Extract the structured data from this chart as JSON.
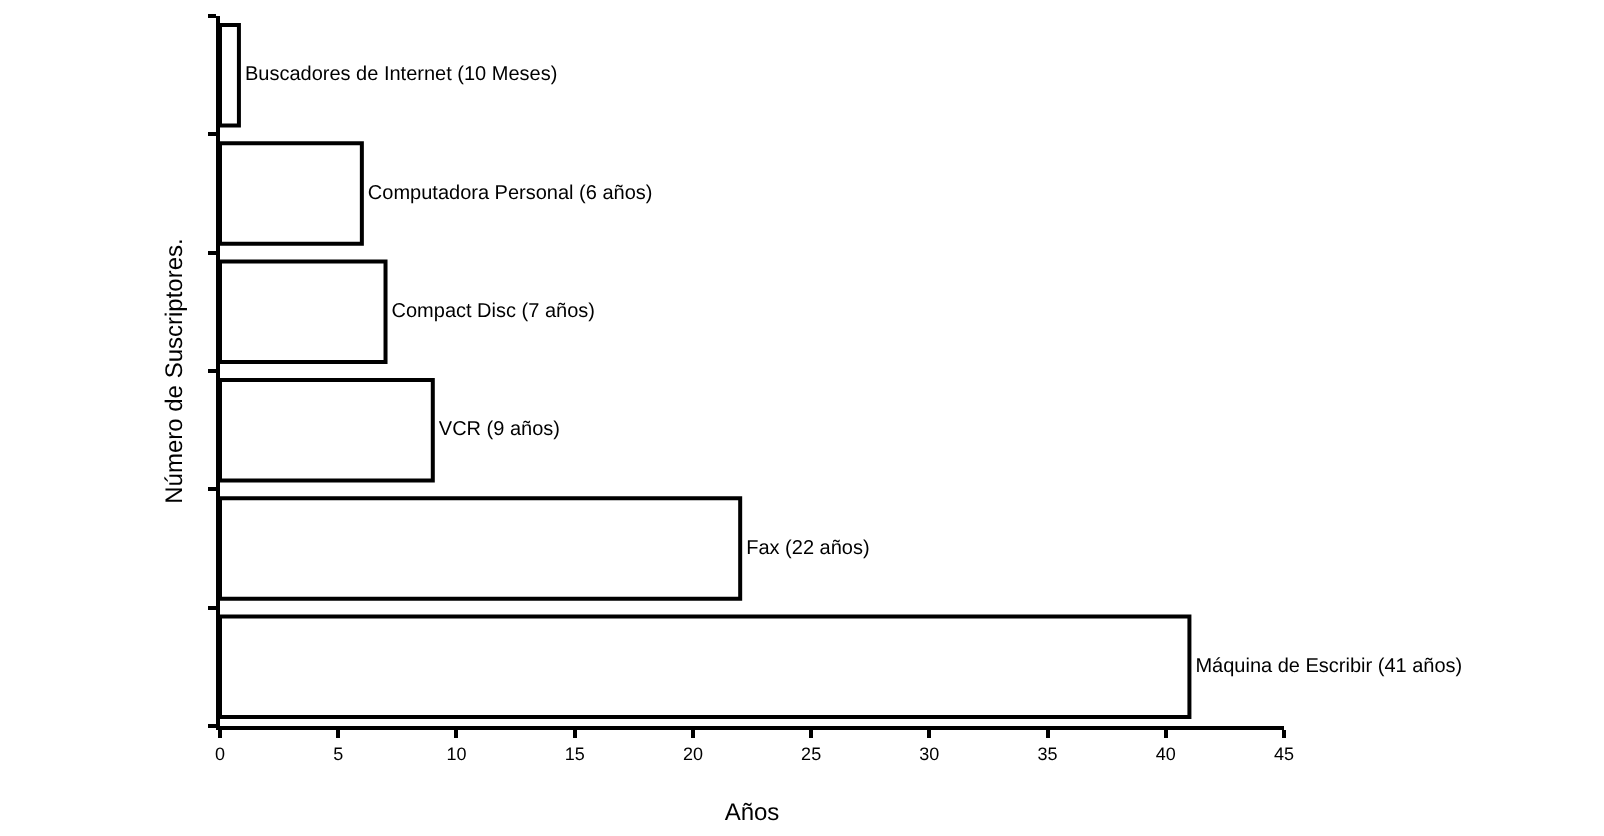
{
  "chart_data": {
    "type": "bar",
    "orientation": "horizontal",
    "xlabel": "Años",
    "ylabel": "Número de Suscriptores.",
    "categories": [
      "Buscadores de Internet (10 Meses)",
      "Computadora Personal (6 años)",
      "Compact Disc (7 años)",
      "VCR (9 años)",
      "Fax (22 años)",
      "Máquina de Escribir (41 años)"
    ],
    "values": [
      0.8,
      6,
      7,
      9,
      22,
      41
    ],
    "color": "#ffffff",
    "xlim": [
      0,
      45
    ],
    "xticks": [
      0,
      5,
      10,
      15,
      20,
      25,
      30,
      35,
      40,
      45
    ],
    "grid": false,
    "legend": false
  }
}
